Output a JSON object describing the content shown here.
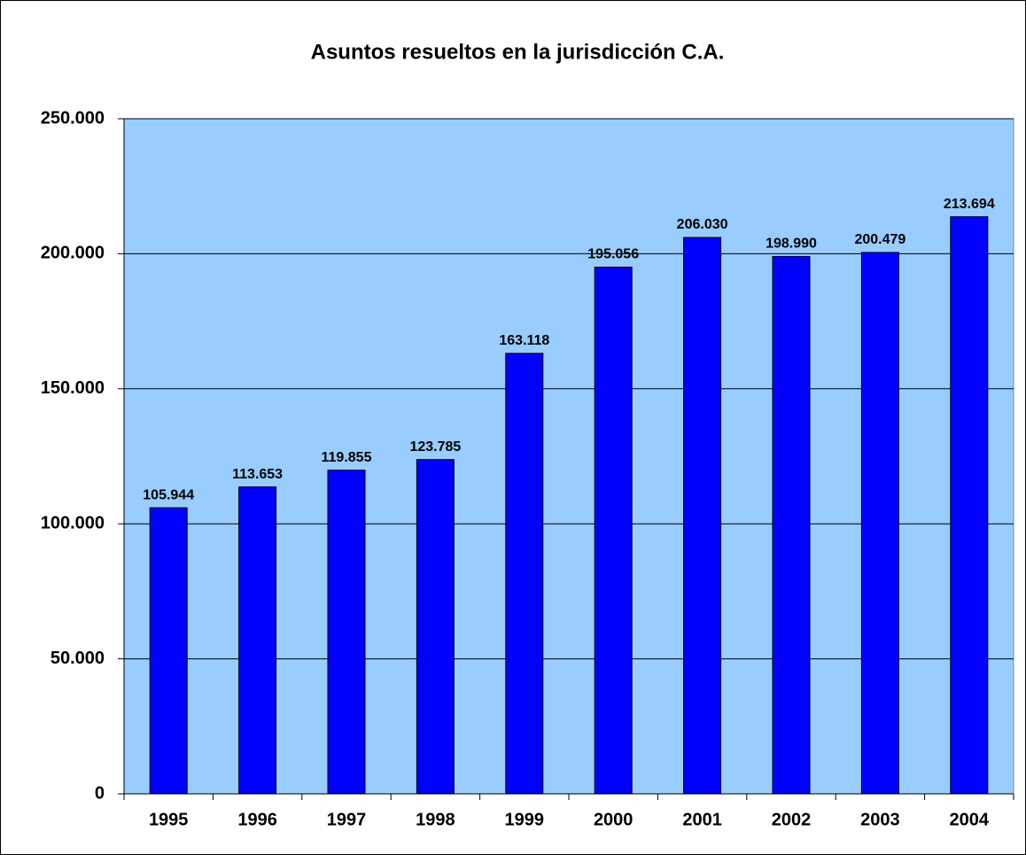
{
  "chart_data": {
    "type": "bar",
    "title": "Asuntos resueltos en la jurisdicción C.A.",
    "categories": [
      "1995",
      "1996",
      "1997",
      "1998",
      "1999",
      "2000",
      "2001",
      "2002",
      "2003",
      "2004"
    ],
    "values": [
      105944,
      113653,
      119855,
      123785,
      163118,
      195056,
      206030,
      198990,
      200479,
      213694
    ],
    "value_labels": [
      "105.944",
      "113.653",
      "119.855",
      "123.785",
      "163.118",
      "195.056",
      "206.030",
      "198.990",
      "200.479",
      "213.694"
    ],
    "color": "#0000ff",
    "background": "#99ccff",
    "ylim": [
      0,
      250000
    ],
    "yticks": [
      0,
      {
        "value": 50000,
        "label": "50.000"
      },
      {
        "value": 100000,
        "label": "100.000"
      },
      {
        "value": 150000,
        "label": "150.000"
      },
      {
        "value": 200000,
        "label": "200.000"
      },
      {
        "value": 250000,
        "label": "250.000"
      }
    ],
    "grid": true
  }
}
